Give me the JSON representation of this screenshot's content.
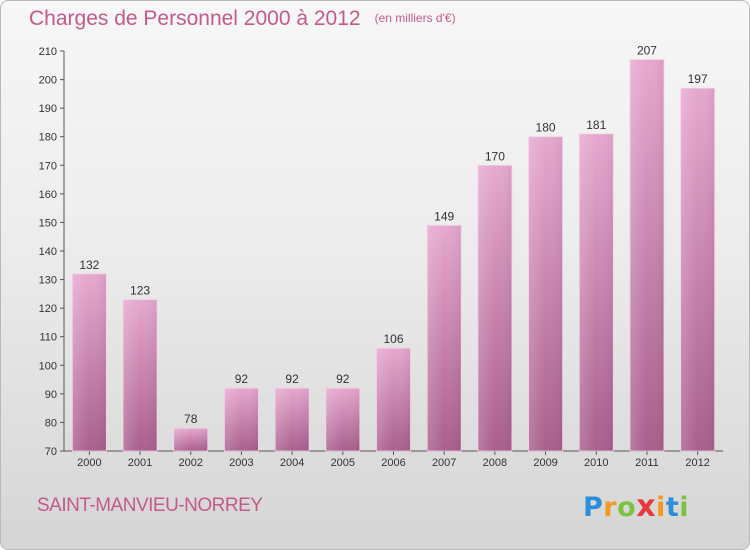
{
  "header": {
    "title": "Charges de Personnel 2000 à 2012",
    "unit": "(en milliers d'€)"
  },
  "footer": {
    "commune": "SAINT-MANVIEU-NORREY",
    "logo_letters": [
      "P",
      "r",
      "o",
      "x",
      "i",
      "t",
      "i"
    ],
    "logo_colors": [
      "#2a8fd8",
      "#f39a1e",
      "#7cc242",
      "#e8383d",
      "#f39a1e",
      "#2a8fd8",
      "#7cc242"
    ]
  },
  "colors": {
    "bar_top": "#e6a8cf",
    "bar_bottom": "#a85f8c",
    "title": "#c45a8c"
  },
  "chart_data": {
    "type": "bar",
    "title": "Charges de Personnel 2000 à 2012",
    "subtitle": "(en milliers d'€)",
    "categories": [
      "2000",
      "2001",
      "2002",
      "2003",
      "2004",
      "2005",
      "2006",
      "2007",
      "2008",
      "2009",
      "2010",
      "2011",
      "2012"
    ],
    "values": [
      132,
      123,
      78,
      92,
      92,
      92,
      106,
      149,
      170,
      180,
      181,
      207,
      197
    ],
    "ylim": [
      70,
      210
    ],
    "yticks": [
      70,
      80,
      90,
      100,
      110,
      120,
      130,
      140,
      150,
      160,
      170,
      180,
      190,
      200,
      210
    ],
    "grid": false,
    "data_labels": true
  }
}
